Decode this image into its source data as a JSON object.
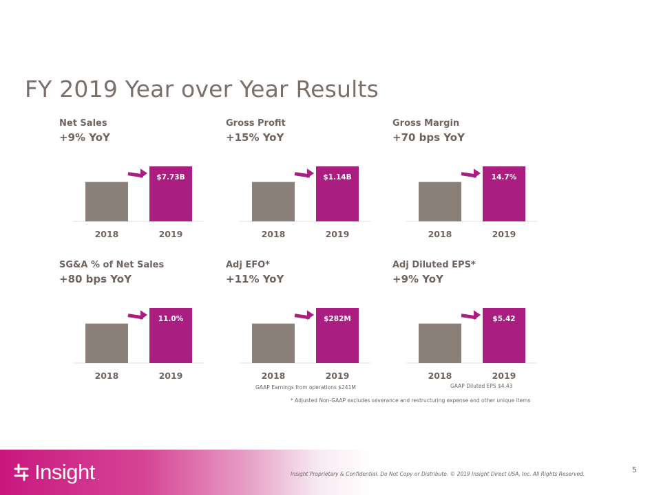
{
  "title": "FY 2019 Year over Year Results",
  "colors": {
    "prior": "#8a7f79",
    "current": "#a91e80",
    "arrow": "#a91e80",
    "text": "#6f6460"
  },
  "chart_data": [
    {
      "type": "bar",
      "metric": "Net Sales",
      "change": "+9% YoY",
      "categories": [
        "2018",
        "2019"
      ],
      "values": [
        7.09,
        7.73
      ],
      "unit": "$B",
      "data_label": "$7.73B",
      "note": ""
    },
    {
      "type": "bar",
      "metric": "Gross Profit",
      "change": "+15% YoY",
      "categories": [
        "2018",
        "2019"
      ],
      "values": [
        0.99,
        1.14
      ],
      "unit": "$B",
      "data_label": "$1.14B",
      "note": ""
    },
    {
      "type": "bar",
      "metric": "Gross Margin",
      "change": "+70 bps YoY",
      "categories": [
        "2018",
        "2019"
      ],
      "values": [
        14.0,
        14.7
      ],
      "unit": "%",
      "data_label": "14.7%",
      "note": ""
    },
    {
      "type": "bar",
      "metric": "SG&A % of Net Sales",
      "change": "+80 bps YoY",
      "categories": [
        "2018",
        "2019"
      ],
      "values": [
        10.2,
        11.0
      ],
      "unit": "%",
      "data_label": "11.0%",
      "note": ""
    },
    {
      "type": "bar",
      "metric": "Adj EFO*",
      "change": "+11% YoY",
      "categories": [
        "2018",
        "2019"
      ],
      "values": [
        254,
        282
      ],
      "unit": "$M",
      "data_label": "$282M",
      "note": "GAAP Earnings from operations $241M"
    },
    {
      "type": "bar",
      "metric": "Adj Diluted  EPS*",
      "change": "+9% YoY",
      "categories": [
        "2018",
        "2019"
      ],
      "values": [
        4.97,
        5.42
      ],
      "unit": "$",
      "data_label": "$5.42",
      "note": "GAAP Diluted EPS $4.43"
    }
  ],
  "footnote": "* Adjusted Non-GAAP excludes severance and restructuring  expense and other unique items",
  "footer": {
    "logo_text": "Insight",
    "logo_mark": ".",
    "legal": "Insight Proprietary & Confidential. Do Not Copy or Distribute.  © 2019 Insight Direct USA, Inc. All Rights Reserved.",
    "page_number": "5"
  }
}
